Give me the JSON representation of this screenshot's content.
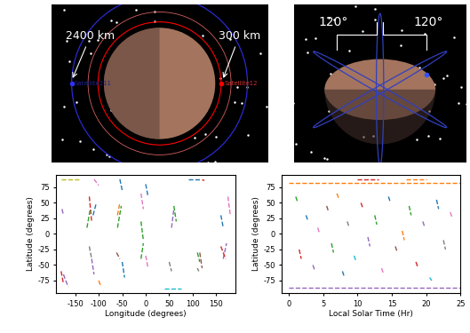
{
  "diagrams": [
    {
      "labels": {
        "outer_orbit": "2400 km",
        "inner_orbit": "300 km",
        "outer_satellite": "Satellite211",
        "inner_satellite": "Satellite12"
      }
    },
    {
      "labels": {
        "left_angle": "120°",
        "right_angle": "120°"
      }
    }
  ],
  "chart_data": [
    {
      "type": "line",
      "xlabel": "Longitude (degrees)",
      "ylabel": "Latitude (degrees)",
      "xlim": [
        -190,
        190
      ],
      "ylim": [
        -95,
        95
      ],
      "xticks": [
        -150,
        -100,
        -50,
        0,
        50,
        100,
        150
      ],
      "yticks": [
        -75,
        -50,
        -25,
        0,
        25,
        50,
        75
      ],
      "line_style": "dashed",
      "series": [
        {
          "color": "#bcbd22",
          "x": [
            -180,
            -140
          ],
          "values": [
            88,
            88
          ]
        },
        {
          "color": "#9467bd",
          "x": [
            -178,
            -175
          ],
          "values": [
            40,
            30
          ]
        },
        {
          "color": "#d62728",
          "x": [
            -180,
            -175
          ],
          "values": [
            -60,
            -80
          ]
        },
        {
          "color": "#9467bd",
          "x": [
            -175,
            -165
          ],
          "values": [
            -65,
            -85
          ]
        },
        {
          "color": "#e377c2",
          "x": [
            -110,
            -100
          ],
          "values": [
            88,
            78
          ]
        },
        {
          "color": "#d62728",
          "x": [
            -120,
            -115
          ],
          "values": [
            60,
            20
          ]
        },
        {
          "color": "#2ca02c",
          "x": [
            -125,
            -118
          ],
          "values": [
            10,
            40
          ]
        },
        {
          "color": "#1f77b4",
          "x": [
            -112,
            -105
          ],
          "values": [
            30,
            50
          ]
        },
        {
          "color": "#7f7f7f",
          "x": [
            -120,
            -115
          ],
          "values": [
            -20,
            -40
          ]
        },
        {
          "color": "#9467bd",
          "x": [
            -115,
            -110
          ],
          "values": [
            -40,
            -65
          ]
        },
        {
          "color": "#ff7f0e",
          "x": [
            -100,
            -95
          ],
          "values": [
            -75,
            -85
          ]
        },
        {
          "color": "#1f77b4",
          "x": [
            -55,
            -50
          ],
          "values": [
            88,
            70
          ]
        },
        {
          "color": "#2ca02c",
          "x": [
            -60,
            -52
          ],
          "values": [
            10,
            45
          ]
        },
        {
          "color": "#ff7f0e",
          "x": [
            -60,
            -55
          ],
          "values": [
            30,
            50
          ]
        },
        {
          "color": "#8c564b",
          "x": [
            -62,
            -55
          ],
          "values": [
            -30,
            -40
          ]
        },
        {
          "color": "#1f77b4",
          "x": [
            -50,
            -45
          ],
          "values": [
            -45,
            -70
          ]
        },
        {
          "color": "#e377c2",
          "x": [
            -10,
            -5
          ],
          "values": [
            65,
            40
          ]
        },
        {
          "color": "#2ca02c",
          "x": [
            -10,
            -5
          ],
          "values": [
            20,
            -10
          ]
        },
        {
          "color": "#1f77b4",
          "x": [
            0,
            5
          ],
          "values": [
            80,
            60
          ]
        },
        {
          "color": "#2ca02c",
          "x": [
            -10,
            -5
          ],
          "values": [
            -40,
            -15
          ]
        },
        {
          "color": "#e377c2",
          "x": [
            0,
            5
          ],
          "values": [
            -35,
            -55
          ]
        },
        {
          "color": "#17becf",
          "x": [
            40,
            75
          ],
          "values": [
            -88,
            -88
          ]
        },
        {
          "color": "#7f7f7f",
          "x": [
            50,
            55
          ],
          "values": [
            -45,
            -60
          ]
        },
        {
          "color": "#2ca02c",
          "x": [
            60,
            65
          ],
          "values": [
            45,
            20
          ]
        },
        {
          "color": "#9467bd",
          "x": [
            55,
            60
          ],
          "values": [
            10,
            40
          ]
        },
        {
          "color": "#1f77b4",
          "x": [
            90,
            115
          ],
          "values": [
            88,
            88
          ]
        },
        {
          "color": "#d62728",
          "x": [
            120,
            125
          ],
          "values": [
            87,
            86
          ]
        },
        {
          "color": "#8c564b",
          "x": [
            115,
            120
          ],
          "values": [
            -30,
            -55
          ]
        },
        {
          "color": "#2ca02c",
          "x": [
            110,
            115
          ],
          "values": [
            -30,
            -45
          ]
        },
        {
          "color": "#7f7f7f",
          "x": [
            110,
            113
          ],
          "values": [
            -55,
            -60
          ]
        },
        {
          "color": "#1f77b4",
          "x": [
            160,
            165
          ],
          "values": [
            30,
            10
          ]
        },
        {
          "color": "#9467bd",
          "x": [
            165,
            172
          ],
          "values": [
            -40,
            -15
          ]
        },
        {
          "color": "#d62728",
          "x": [
            160,
            170
          ],
          "values": [
            -20,
            -40
          ]
        },
        {
          "color": "#e377c2",
          "x": [
            175,
            180
          ],
          "values": [
            60,
            30
          ]
        }
      ]
    },
    {
      "type": "line",
      "xlabel": "Local Solar Time (Hr)",
      "ylabel": "Latitude (degrees)",
      "xlim": [
        -1,
        25
      ],
      "ylim": [
        -95,
        95
      ],
      "xticks": [
        0,
        5,
        10,
        15,
        20,
        25
      ],
      "yticks": [
        -75,
        -50,
        -25,
        0,
        25,
        50,
        75
      ],
      "line_style": "dashed",
      "series": [
        {
          "color": "#ff7f0e",
          "x": [
            0,
            25
          ],
          "values": [
            82,
            82
          ]
        },
        {
          "color": "#d62728",
          "x": [
            10,
            13
          ],
          "values": [
            88,
            88
          ]
        },
        {
          "color": "#ff7f0e",
          "x": [
            17,
            20
          ],
          "values": [
            88,
            88
          ]
        },
        {
          "color": "#9467bd",
          "x": [
            0,
            25
          ],
          "values": [
            -87,
            -87
          ]
        },
        {
          "color": "#2ca02c",
          "x": [
            1.0,
            1.3
          ],
          "values": [
            60,
            50
          ]
        },
        {
          "color": "#d62728",
          "x": [
            1.5,
            1.8
          ],
          "values": [
            -25,
            -40
          ]
        },
        {
          "color": "#1f77b4",
          "x": [
            2.5,
            2.8
          ],
          "values": [
            30,
            20
          ]
        },
        {
          "color": "#9467bd",
          "x": [
            3.5,
            3.8
          ],
          "values": [
            -50,
            -60
          ]
        },
        {
          "color": "#e377c2",
          "x": [
            4.2,
            4.5
          ],
          "values": [
            10,
            0
          ]
        },
        {
          "color": "#8c564b",
          "x": [
            5.5,
            5.8
          ],
          "values": [
            45,
            35
          ]
        },
        {
          "color": "#2ca02c",
          "x": [
            6.2,
            6.5
          ],
          "values": [
            -15,
            -30
          ]
        },
        {
          "color": "#ff7f0e",
          "x": [
            7.0,
            7.3
          ],
          "values": [
            65,
            55
          ]
        },
        {
          "color": "#1f77b4",
          "x": [
            7.8,
            8.1
          ],
          "values": [
            -60,
            -70
          ]
        },
        {
          "color": "#7f7f7f",
          "x": [
            8.5,
            8.8
          ],
          "values": [
            20,
            10
          ]
        },
        {
          "color": "#17becf",
          "x": [
            9.5,
            9.8
          ],
          "values": [
            -35,
            -45
          ]
        },
        {
          "color": "#d62728",
          "x": [
            10.5,
            10.8
          ],
          "values": [
            50,
            40
          ]
        },
        {
          "color": "#9467bd",
          "x": [
            11.5,
            11.8
          ],
          "values": [
            -5,
            -20
          ]
        },
        {
          "color": "#2ca02c",
          "x": [
            12.5,
            12.8
          ],
          "values": [
            30,
            15
          ]
        },
        {
          "color": "#e377c2",
          "x": [
            13.5,
            13.8
          ],
          "values": [
            -55,
            -65
          ]
        },
        {
          "color": "#1f77b4",
          "x": [
            14.5,
            14.8
          ],
          "values": [
            60,
            50
          ]
        },
        {
          "color": "#8c564b",
          "x": [
            15.5,
            15.8
          ],
          "values": [
            -20,
            -30
          ]
        },
        {
          "color": "#ff7f0e",
          "x": [
            16.5,
            16.8
          ],
          "values": [
            5,
            -10
          ]
        },
        {
          "color": "#2ca02c",
          "x": [
            17.5,
            17.8
          ],
          "values": [
            45,
            30
          ]
        },
        {
          "color": "#d62728",
          "x": [
            18.5,
            18.8
          ],
          "values": [
            -45,
            -55
          ]
        },
        {
          "color": "#9467bd",
          "x": [
            19.5,
            19.8
          ],
          "values": [
            20,
            10
          ]
        },
        {
          "color": "#17becf",
          "x": [
            20.5,
            20.8
          ],
          "values": [
            -70,
            -75
          ]
        },
        {
          "color": "#1f77b4",
          "x": [
            21.5,
            21.8
          ],
          "values": [
            55,
            40
          ]
        },
        {
          "color": "#7f7f7f",
          "x": [
            22.5,
            22.8
          ],
          "values": [
            -10,
            -25
          ]
        },
        {
          "color": "#e377c2",
          "x": [
            23.5,
            23.8
          ],
          "values": [
            35,
            25
          ]
        }
      ]
    }
  ]
}
